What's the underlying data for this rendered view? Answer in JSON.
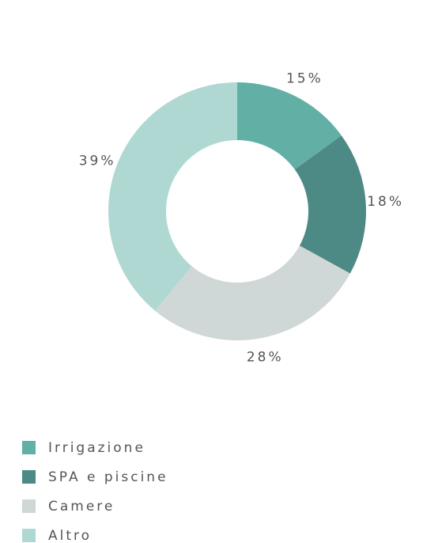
{
  "chart_data": {
    "type": "pie",
    "categories": [
      "Irrigazione",
      "SPA e piscine",
      "Camere",
      "Altro"
    ],
    "values": [
      15,
      18,
      28,
      39
    ],
    "value_labels": [
      "15%",
      "18%",
      "28%",
      "39%"
    ],
    "colors": [
      "#62afa5",
      "#4e8a85",
      "#cfd8d7",
      "#b0d8d2"
    ],
    "donut": true,
    "legend": "bottom-left"
  }
}
